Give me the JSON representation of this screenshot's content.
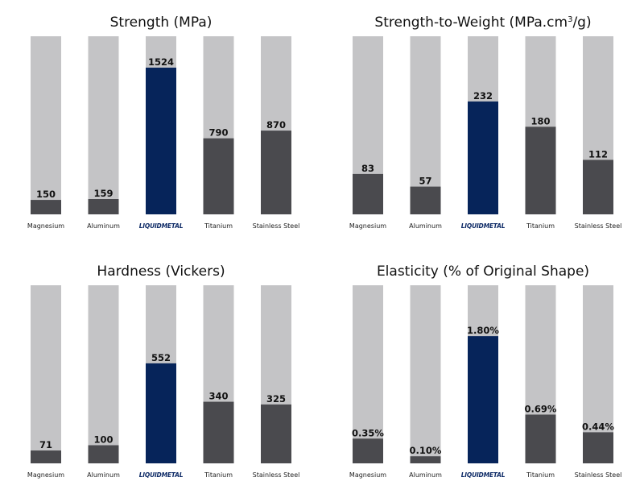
{
  "colors": {
    "track": "#c4c4c6",
    "bar": "#4a4a4e",
    "highlight": "#06245a",
    "brand": "#0d2a66"
  },
  "chart_data": [
    {
      "type": "bar",
      "title": "Strength (MPa)",
      "title_sup": "",
      "title_after": "",
      "categories": [
        "Magnesium",
        "Aluminum",
        "LIQUIDMETAL",
        "Titanium",
        "Stainless Steel"
      ],
      "values": [
        150,
        159,
        1524,
        790,
        870
      ],
      "value_labels": [
        "150",
        "159",
        "1524",
        "790",
        "870"
      ],
      "highlight_index": 2,
      "ylim": [
        0,
        1850
      ],
      "grid": false,
      "legend": "none"
    },
    {
      "type": "bar",
      "title": "Strength-to-Weight (MPa.cm",
      "title_sup": "3",
      "title_after": "/g)",
      "categories": [
        "Magnesium",
        "Aluminum",
        "LIQUIDMETAL",
        "Titanium",
        "Stainless Steel"
      ],
      "values": [
        83,
        57,
        232,
        180,
        112
      ],
      "value_labels": [
        "83",
        "57",
        "232",
        "180",
        "112"
      ],
      "highlight_index": 2,
      "ylim": [
        0,
        366
      ],
      "grid": false,
      "legend": "none"
    },
    {
      "type": "bar",
      "title": "Hardness (Vickers)",
      "title_sup": "",
      "title_after": "",
      "categories": [
        "Magnesium",
        "Aluminum",
        "LIQUIDMETAL",
        "Titanium",
        "Stainless Steel"
      ],
      "values": [
        71,
        100,
        552,
        340,
        325
      ],
      "value_labels": [
        "71",
        "100",
        "552",
        "340",
        "325"
      ],
      "highlight_index": 2,
      "ylim": [
        0,
        983
      ],
      "grid": false,
      "legend": "none"
    },
    {
      "type": "bar",
      "title": "Elasticity (% of Original Shape)",
      "title_sup": "",
      "title_after": "",
      "categories": [
        "Magnesium",
        "Aluminum",
        "LIQUIDMETAL",
        "Titanium",
        "Stainless Steel"
      ],
      "values": [
        0.35,
        0.1,
        1.8,
        0.69,
        0.44
      ],
      "value_labels": [
        "0.35%",
        "0.10%",
        "1.80%",
        "0.69%",
        "0.44%"
      ],
      "highlight_index": 2,
      "ylim": [
        0,
        2.52
      ],
      "grid": false,
      "legend": "none"
    }
  ]
}
